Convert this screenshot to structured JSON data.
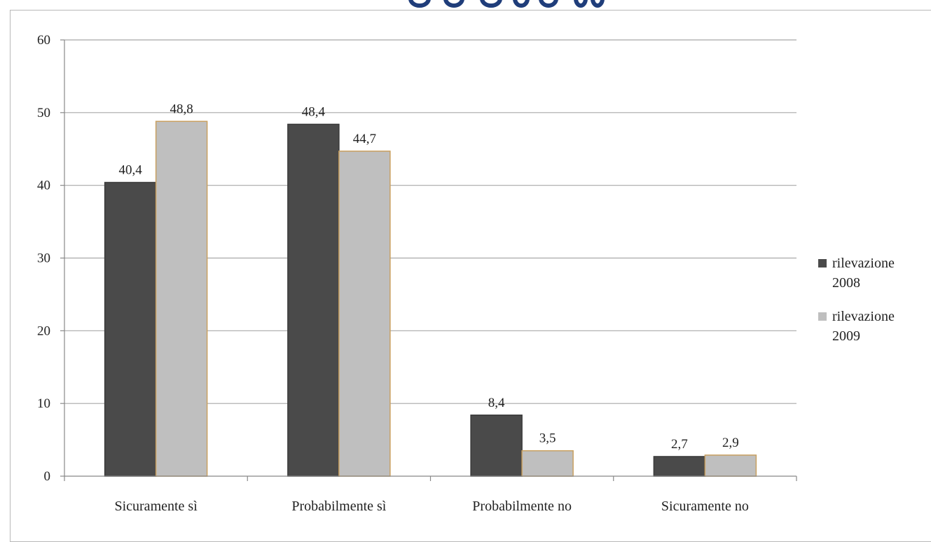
{
  "chart_data": {
    "type": "bar",
    "categories": [
      "Sicuramente sì",
      "Probabilmente sì",
      "Probabilmente no",
      "Sicuramente no"
    ],
    "series": [
      {
        "name": "rilevazione 2008",
        "values": [
          40.4,
          48.4,
          8.4,
          2.7
        ],
        "labels": [
          "40,4",
          "48,4",
          "8,4",
          "2,7"
        ],
        "color": "#4a4a4a",
        "stroke": "#3a3a3a"
      },
      {
        "name": "rilevazione 2009",
        "values": [
          48.8,
          44.7,
          3.5,
          2.9
        ],
        "labels": [
          "48,8",
          "44,7",
          "3,5",
          "2,9"
        ],
        "color": "#bfbfbf",
        "stroke": "#c9a060"
      }
    ],
    "ylim": [
      0,
      60
    ],
    "yticks": [
      0,
      10,
      20,
      30,
      40,
      50,
      60
    ],
    "grid": true,
    "legend_position": "right",
    "title": "",
    "xlabel": "",
    "ylabel": ""
  },
  "legend": {
    "items": [
      {
        "line1": "rilevazione",
        "line2": "2008",
        "color": "#4a4a4a"
      },
      {
        "line1": "rilevazione",
        "line2": "2009",
        "color": "#bfbfbf"
      }
    ]
  },
  "title_color": "#1f3d7a"
}
